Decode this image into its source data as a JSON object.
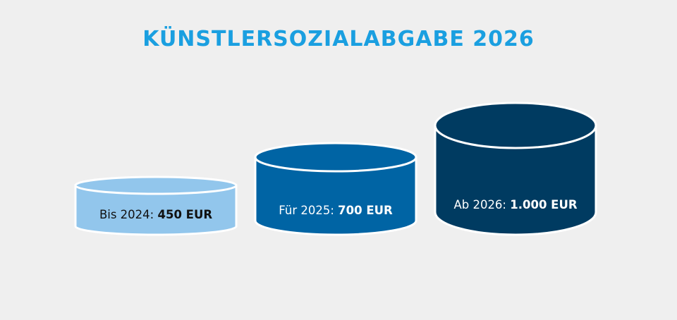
{
  "title": "KÜNSTLERSOZIALABGABE 2026",
  "colors": {
    "title": "#1a9fe0",
    "background": "#efefef",
    "outline": "#ffffff"
  },
  "cylinders": [
    {
      "prefix": "Bis 2024: ",
      "value": "450 EUR",
      "fill": "#92c6ec",
      "text_color": "#111111"
    },
    {
      "prefix": "Für 2025: ",
      "value": "700 EUR",
      "fill": "#0064a4",
      "text_color": "#ffffff"
    },
    {
      "prefix": "Ab 2026: ",
      "value": "1.000 EUR",
      "fill": "#003b61",
      "text_color": "#ffffff"
    }
  ]
}
